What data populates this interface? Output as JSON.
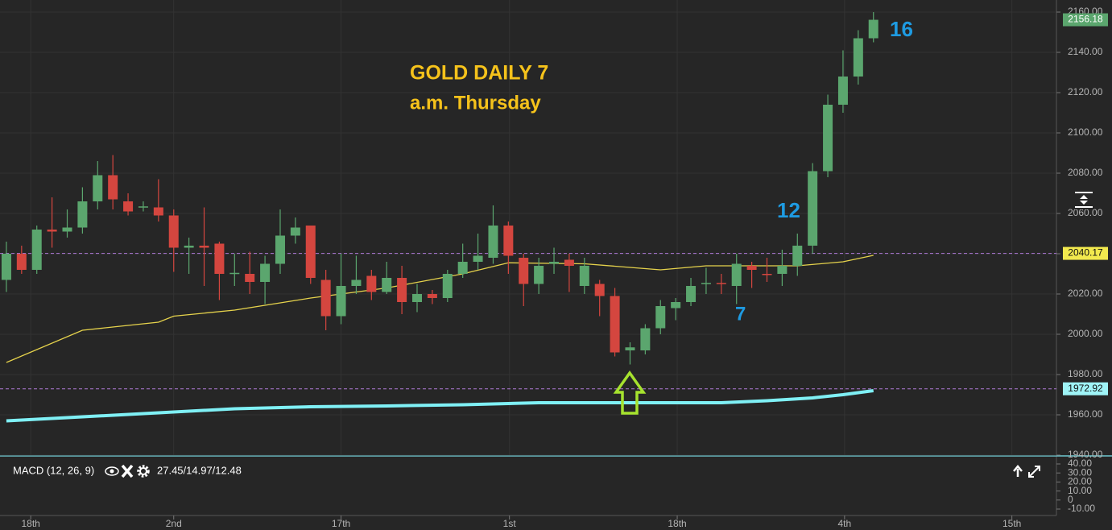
{
  "chart_data": {
    "type": "candlestick",
    "title": "GOLD DAILY  7",
    "subtitle": "a.m. Thursday",
    "annotations": [
      "16",
      "12",
      "7"
    ],
    "up_color": "#5ba66e",
    "down_color": "#d4463f",
    "open": [
      2027,
      2040,
      2032,
      2052,
      2051,
      2053,
      2066,
      2079,
      2066,
      2063,
      2063,
      2059,
      2043,
      2044,
      2045,
      2030,
      2030,
      2026,
      2035,
      2049,
      2054,
      2027,
      2009,
      2024,
      2029,
      2021,
      2028,
      2016,
      2020,
      2018,
      2030,
      2036,
      2038,
      2054,
      2038,
      2025,
      2035,
      2037,
      2024,
      2025,
      2019,
      1992,
      1992,
      2003,
      2013,
      2016,
      2025,
      2025.5,
      2024,
      2034,
      2030,
      2030,
      2034,
      2044,
      2081,
      2114,
      2128,
      2147
    ],
    "high": [
      2046,
      2044,
      2054,
      2068,
      2062,
      2073,
      2086,
      2089,
      2070,
      2066,
      2077,
      2062,
      2048,
      2063,
      2046,
      2040,
      2041,
      2039,
      2062,
      2058,
      2054,
      2032,
      2040,
      2039,
      2032,
      2036,
      2034,
      2025,
      2022,
      2032,
      2045,
      2050,
      2064,
      2056,
      2040,
      2038,
      2043,
      2040,
      2038,
      2027,
      2023,
      1996,
      2005,
      2017,
      2018,
      2028,
      2033,
      2030,
      2040,
      2036,
      2038,
      2042,
      2050,
      2085,
      2119,
      2141,
      2151,
      2160
    ],
    "low": [
      2021,
      2030,
      2030,
      2043,
      2048,
      2050,
      2062,
      2062,
      2059,
      2061,
      2056,
      2031,
      2030,
      2024,
      2017,
      2024,
      2020,
      2015,
      2030,
      2045,
      2025,
      2002,
      2005,
      2020,
      2017,
      2020,
      2010,
      2011,
      2015,
      2016,
      2028,
      2032,
      2035,
      2030,
      2014,
      2020,
      2030,
      2021,
      2020,
      2009,
      1989,
      1985,
      1990,
      2000,
      2007,
      2014,
      2020,
      2020,
      2015,
      2023,
      2026,
      2024,
      2029,
      2040,
      2078,
      2110,
      2124,
      2145
    ],
    "close": [
      2040,
      2032,
      2052,
      2051,
      2053,
      2066,
      2079,
      2067,
      2061,
      2063.5,
      2059,
      2043,
      2044,
      2043,
      2030,
      2030.5,
      2026,
      2035,
      2049,
      2053,
      2028,
      2009,
      2024,
      2027,
      2021,
      2028,
      2016,
      2020,
      2018,
      2030,
      2036,
      2039,
      2054,
      2039,
      2025,
      2034,
      2036,
      2034,
      2034,
      2019,
      1991,
      1993.5,
      2003,
      2014,
      2016,
      2024,
      2025.5,
      2025,
      2035,
      2032,
      2029.5,
      2034,
      2044,
      2081,
      2114,
      2128,
      2147,
      2156.18
    ],
    "lines": [
      {
        "color": "#e6d34c",
        "x": [
          0,
          5,
          10,
          11,
          15,
          20,
          25,
          30,
          33,
          38,
          43,
          46,
          52,
          55,
          57
        ],
        "values": [
          1986,
          2002,
          2006,
          2009,
          2012,
          2018,
          2023,
          2030,
          2035.5,
          2035,
          2032,
          2034,
          2034,
          2036,
          2039.2
        ]
      },
      {
        "color": "#7ff0f5",
        "x": [
          0,
          5,
          10,
          15,
          20,
          25,
          30,
          35,
          43,
          47,
          50,
          53,
          55,
          57
        ],
        "values": [
          1957,
          1959,
          1961,
          1963,
          1964,
          1964.4,
          1965,
          1966,
          1966,
          1966,
          1967,
          1968.4,
          1970,
          1972
        ]
      }
    ],
    "price_tags": [
      {
        "value": 2156.18,
        "color": "#5ba66e",
        "text_color": "#ffffff",
        "dashed_line": false
      },
      {
        "value": 2040.17,
        "color": "#f2e94e",
        "text_color": "#111111",
        "dashed_line": true
      },
      {
        "value": 1972.92,
        "color": "#9ff4f7",
        "text_color": "#111111",
        "dashed_line": true
      }
    ],
    "xlim": [
      -0.42,
      69.03
    ],
    "ylim": [
      1940,
      2166
    ],
    "xticks": [
      {
        "value": 1.6,
        "label": "18th"
      },
      {
        "value": 11,
        "label": "2nd"
      },
      {
        "value": 22,
        "label": "17th"
      },
      {
        "value": 33.07,
        "label": "1st"
      },
      {
        "value": 44.1,
        "label": "18th"
      },
      {
        "value": 55.1,
        "label": "4th"
      },
      {
        "value": 66.1,
        "label": "15th"
      }
    ],
    "yticks": [
      {
        "value": 1940,
        "label": "1940.00"
      },
      {
        "value": 1960,
        "label": "1960.00"
      },
      {
        "value": 1980,
        "label": "1980.00"
      },
      {
        "value": 2000,
        "label": "2000.00"
      },
      {
        "value": 2020,
        "label": "2020.00"
      },
      {
        "value": 2040,
        "label": "2040.00"
      },
      {
        "value": 2060,
        "label": "2060.00"
      },
      {
        "value": 2080,
        "label": "2080.00"
      },
      {
        "value": 2100,
        "label": "2100.00"
      },
      {
        "value": 2120,
        "label": "2120.00"
      },
      {
        "value": 2140,
        "label": "2140.00"
      },
      {
        "value": 2160,
        "label": "2160.00"
      }
    ],
    "grid": true,
    "macd": {
      "label": "MACD (12, 26, 9)",
      "readout": "27.45/14.97/12.48",
      "ylim": [
        -10,
        40
      ],
      "yticks": [
        {
          "value": 40,
          "label": "40.00"
        },
        {
          "value": 30,
          "label": "30.00"
        },
        {
          "value": 20,
          "label": "20.00"
        },
        {
          "value": 10,
          "label": "10.00"
        },
        0,
        {
          "value": -10,
          "label": "-10.00"
        }
      ]
    }
  }
}
